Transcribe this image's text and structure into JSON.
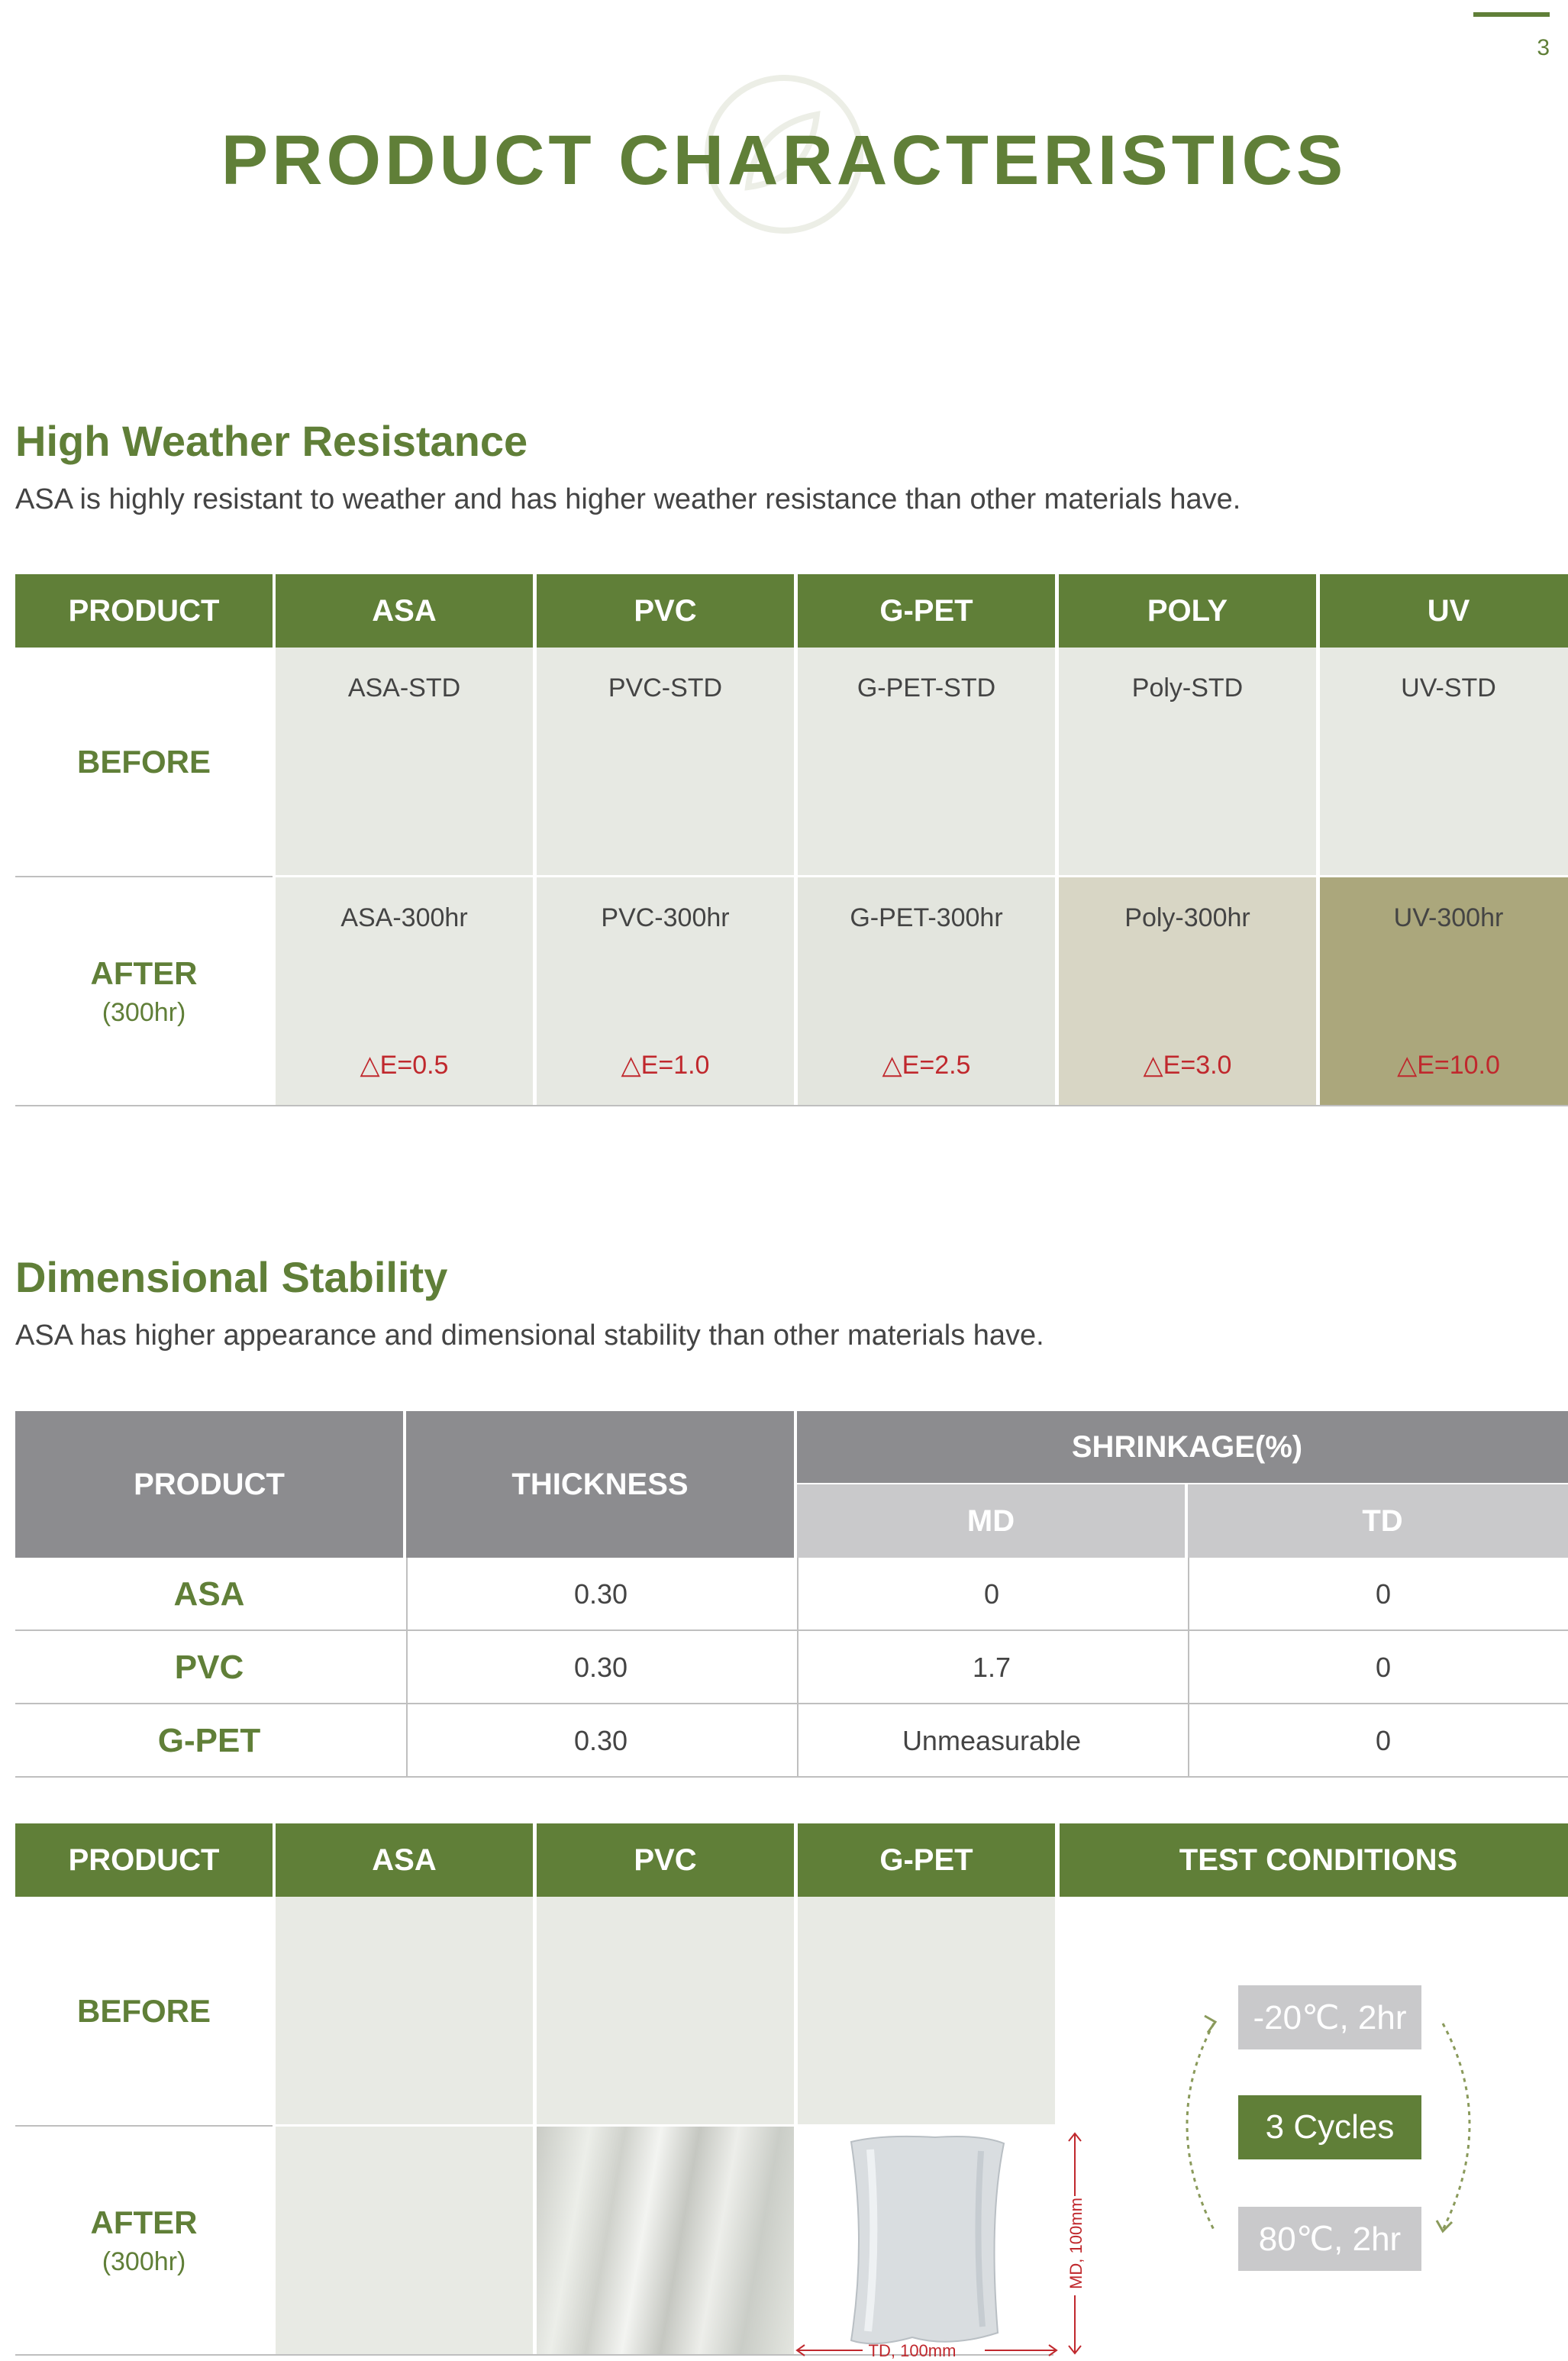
{
  "page_number": "3",
  "title": "PRODUCT CHARACTERISTICS",
  "weather": {
    "heading": "High Weather Resistance",
    "description": "ASA is highly resistant to weather and has higher weather resistance than other materials have.",
    "header_label": "PRODUCT",
    "columns": [
      "ASA",
      "PVC",
      "G-PET",
      "POLY",
      "UV"
    ],
    "before_label": "BEFORE",
    "after_label": "AFTER",
    "after_sub": "(300hr)",
    "before": [
      "ASA-STD",
      "PVC-STD",
      "G-PET-STD",
      "Poly-STD",
      "UV-STD"
    ],
    "after": [
      "ASA-300hr",
      "PVC-300hr",
      "G-PET-300hr",
      "Poly-300hr",
      "UV-300hr"
    ],
    "delta_e": [
      "△E=0.5",
      "△E=1.0",
      "△E=2.5",
      "△E=3.0",
      "△E=10.0"
    ],
    "before_colors": [
      "#e7e9e3",
      "#e7e9e3",
      "#e7e9e3",
      "#e7e9e3",
      "#e7e9e3"
    ],
    "after_colors": [
      "#e7e9e3",
      "#e6e8e2",
      "#e3e5de",
      "#d8d6c5",
      "#aba77c"
    ]
  },
  "dimensional": {
    "heading": "Dimensional Stability",
    "description": "ASA has higher appearance and dimensional stability than other materials have.",
    "headers": {
      "product": "PRODUCT",
      "thickness": "THICKNESS",
      "shrinkage": "SHRINKAGE(%)",
      "md": "MD",
      "td": "TD"
    },
    "rows": [
      {
        "product": "ASA",
        "thickness": "0.30",
        "md": "0",
        "td": "0"
      },
      {
        "product": "PVC",
        "thickness": "0.30",
        "md": "1.7",
        "td": "0"
      },
      {
        "product": "G-PET",
        "thickness": "0.30",
        "md": "Unmeasurable",
        "td": "0"
      }
    ]
  },
  "test": {
    "header_label": "PRODUCT",
    "columns": [
      "ASA",
      "PVC",
      "G-PET"
    ],
    "conditions_label": "TEST CONDITIONS",
    "before_label": "BEFORE",
    "after_label": "AFTER",
    "after_sub": "(300hr)",
    "cond_cold": "-20℃, 2hr",
    "cond_cycles": "3 Cycles",
    "cond_hot": "80℃, 2hr",
    "md_annotation": "MD, 100mm",
    "td_annotation": "TD, 100mm"
  }
}
